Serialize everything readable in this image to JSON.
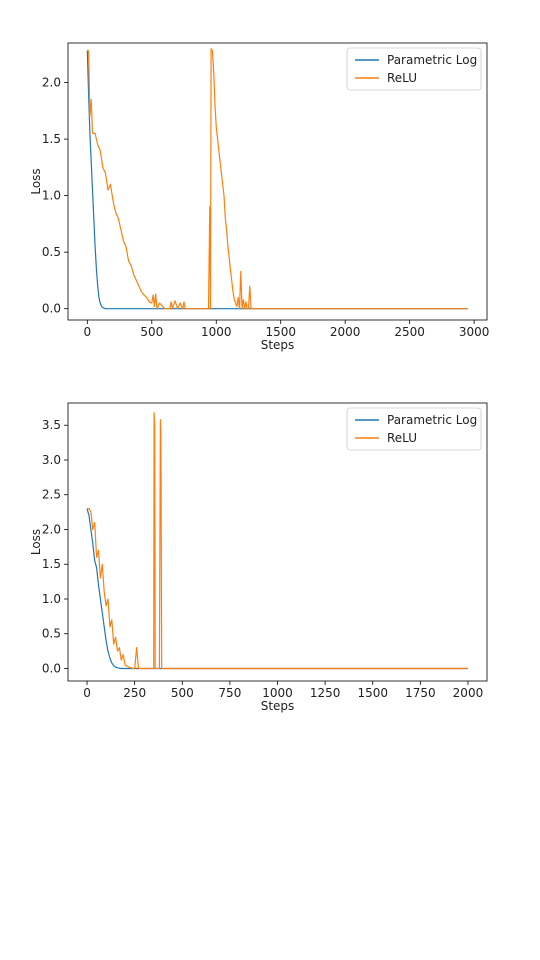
{
  "chart_data": [
    {
      "type": "line",
      "title": "",
      "xlabel": "Steps",
      "ylabel": "Loss",
      "xlim": [
        -150,
        3100
      ],
      "ylim": [
        -0.1,
        2.35
      ],
      "xticks": [
        0,
        500,
        1000,
        1500,
        2000,
        2500,
        3000
      ],
      "yticks": [
        0.0,
        0.5,
        1.0,
        1.5,
        2.0
      ],
      "ytick_labels": [
        "0.0",
        "0.5",
        "1.0",
        "1.5",
        "2.0"
      ],
      "grid": false,
      "legend_position": "upper-right",
      "series": [
        {
          "name": "Parametric Log",
          "color": "#1f77b4",
          "x": [
            0,
            10,
            20,
            30,
            40,
            50,
            60,
            70,
            80,
            90,
            100,
            110,
            120,
            140,
            160,
            200,
            300,
            500,
            1000,
            1500,
            2000,
            2500,
            2950
          ],
          "y": [
            2.28,
            1.9,
            1.55,
            1.3,
            1.05,
            0.8,
            0.55,
            0.35,
            0.2,
            0.1,
            0.05,
            0.02,
            0.01,
            0.0,
            0.0,
            0.0,
            0.0,
            0.0,
            0.0,
            0.0,
            0.0,
            0.0,
            0.0
          ]
        },
        {
          "name": "ReLU",
          "color": "#ff7f0e",
          "x": [
            0,
            10,
            20,
            30,
            40,
            60,
            80,
            100,
            120,
            140,
            160,
            180,
            200,
            220,
            240,
            260,
            280,
            300,
            320,
            340,
            360,
            380,
            400,
            420,
            440,
            460,
            480,
            500,
            510,
            520,
            530,
            540,
            560,
            600,
            640,
            650,
            660,
            680,
            700,
            720,
            740,
            750,
            760,
            780,
            800,
            850,
            900,
            940,
            950,
            955,
            960,
            970,
            980,
            990,
            1000,
            1010,
            1020,
            1030,
            1040,
            1050,
            1060,
            1070,
            1080,
            1090,
            1100,
            1110,
            1120,
            1130,
            1140,
            1150,
            1160,
            1170,
            1180,
            1190,
            1200,
            1210,
            1220,
            1230,
            1240,
            1250,
            1260,
            1270,
            1280,
            1300,
            1500,
            2000,
            2500,
            2950
          ],
          "y": [
            2.29,
            2.28,
            1.7,
            1.85,
            1.55,
            1.55,
            1.45,
            1.4,
            1.25,
            1.2,
            1.05,
            1.1,
            0.95,
            0.85,
            0.8,
            0.7,
            0.6,
            0.55,
            0.42,
            0.38,
            0.3,
            0.25,
            0.2,
            0.15,
            0.12,
            0.1,
            0.06,
            0.05,
            0.12,
            0.02,
            0.13,
            0.0,
            0.05,
            0.0,
            0.0,
            0.06,
            0.0,
            0.07,
            0.0,
            0.05,
            0.0,
            0.06,
            0.0,
            0.0,
            0.0,
            0.0,
            0.0,
            0.0,
            0.9,
            0.0,
            2.3,
            2.28,
            2.1,
            1.8,
            1.6,
            1.5,
            1.4,
            1.3,
            1.2,
            1.1,
            1.0,
            0.8,
            0.7,
            0.55,
            0.45,
            0.35,
            0.25,
            0.15,
            0.08,
            0.05,
            0.02,
            0.1,
            0.0,
            0.33,
            0.0,
            0.08,
            0.0,
            0.06,
            0.0,
            0.0,
            0.2,
            0.0,
            0.0,
            0.0,
            0.0,
            0.0,
            0.0,
            0.0
          ]
        }
      ]
    },
    {
      "type": "line",
      "title": "",
      "xlabel": "Steps",
      "ylabel": "Loss",
      "xlim": [
        -100,
        2100
      ],
      "ylim": [
        -0.18,
        3.82
      ],
      "xticks": [
        0,
        250,
        500,
        750,
        1000,
        1250,
        1500,
        1750,
        2000
      ],
      "yticks": [
        0.0,
        0.5,
        1.0,
        1.5,
        2.0,
        2.5,
        3.0,
        3.5
      ],
      "ytick_labels": [
        "0.0",
        "0.5",
        "1.0",
        "1.5",
        "2.0",
        "2.5",
        "3.0",
        "3.5"
      ],
      "grid": false,
      "legend_position": "upper-right",
      "series": [
        {
          "name": "Parametric Log",
          "color": "#1f77b4",
          "x": [
            0,
            10,
            20,
            30,
            40,
            50,
            60,
            70,
            80,
            90,
            100,
            110,
            120,
            130,
            140,
            150,
            160,
            180,
            200,
            300,
            500,
            1000,
            1500,
            2000
          ],
          "y": [
            2.3,
            2.2,
            2.0,
            1.8,
            1.55,
            1.45,
            1.2,
            1.0,
            0.8,
            0.6,
            0.4,
            0.25,
            0.15,
            0.08,
            0.04,
            0.02,
            0.01,
            0.0,
            0.0,
            0.0,
            0.0,
            0.0,
            0.0,
            0.0
          ]
        },
        {
          "name": "ReLU",
          "color": "#ff7f0e",
          "x": [
            0,
            10,
            20,
            30,
            40,
            50,
            60,
            70,
            80,
            90,
            100,
            110,
            120,
            130,
            140,
            150,
            160,
            170,
            180,
            190,
            200,
            220,
            240,
            250,
            260,
            270,
            300,
            320,
            340,
            350,
            352,
            355,
            358,
            360,
            370,
            380,
            385,
            388,
            392,
            395,
            400,
            500,
            1000,
            1500,
            2000
          ],
          "y": [
            2.3,
            2.3,
            2.25,
            2.0,
            2.1,
            1.6,
            1.7,
            1.3,
            1.5,
            1.1,
            0.9,
            1.0,
            0.6,
            0.7,
            0.35,
            0.45,
            0.25,
            0.3,
            0.12,
            0.2,
            0.05,
            0.02,
            0.0,
            0.0,
            0.3,
            0.0,
            0.0,
            0.0,
            0.0,
            0.0,
            3.68,
            3.5,
            0.0,
            0.0,
            0.0,
            0.0,
            3.58,
            3.4,
            0.0,
            0.0,
            0.0,
            0.0,
            0.0,
            0.0,
            0.0
          ]
        }
      ]
    }
  ]
}
